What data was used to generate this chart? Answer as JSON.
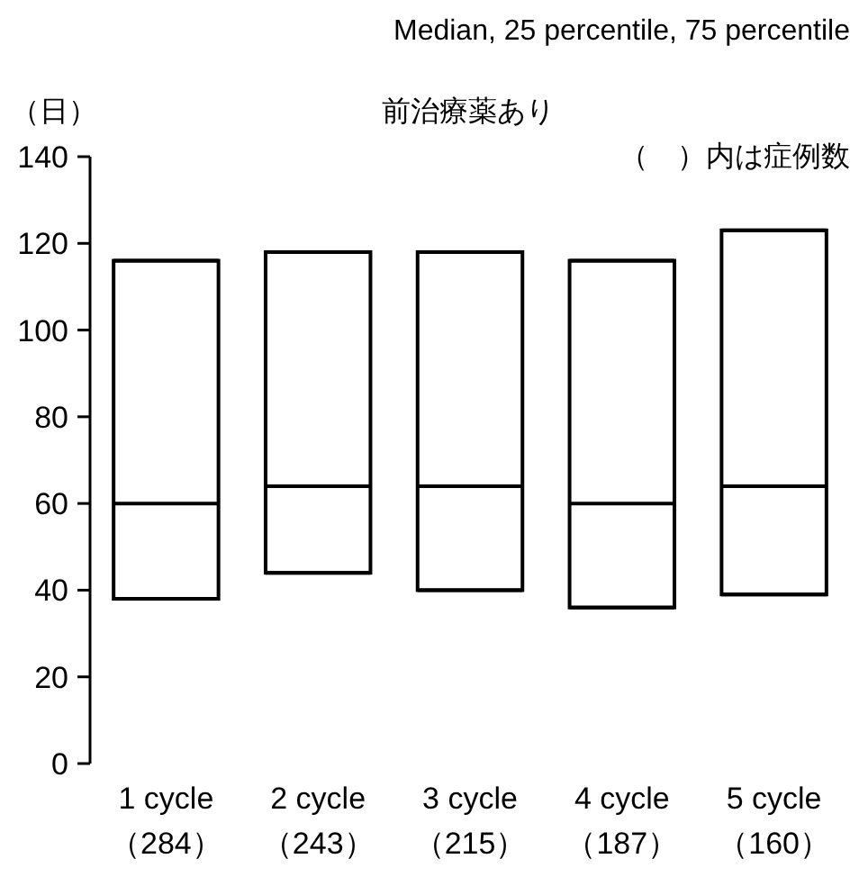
{
  "chart_data": {
    "type": "box",
    "title": "前治療薬あり",
    "subtitle": "Median, 25 percentile, 75 percentile",
    "ylabel": "（日）",
    "annotations": [
      "（　）内は症例数"
    ],
    "categories": [
      "1 cycle\n（284）",
      "2 cycle\n（243）",
      "3 cycle\n（215）",
      "4 cycle\n（187）",
      "5 cycle\n（160）"
    ],
    "color": "#000000",
    "boxes": [
      {
        "low": 38,
        "q1": 38,
        "median": 60,
        "q3": 116,
        "high": 116
      },
      {
        "low": 44,
        "q1": 44,
        "median": 64,
        "q3": 118,
        "high": 118
      },
      {
        "low": 40,
        "q1": 40,
        "median": 64,
        "q3": 118,
        "high": 118
      },
      {
        "low": 36,
        "q1": 36,
        "median": 60,
        "q3": 116,
        "high": 116
      },
      {
        "low": 39,
        "q1": 39,
        "median": 64,
        "q3": 123,
        "high": 123
      }
    ],
    "ylim": [
      0,
      140
    ],
    "yticks": [
      0,
      20,
      40,
      60,
      80,
      100,
      120,
      140
    ],
    "grid": false
  }
}
